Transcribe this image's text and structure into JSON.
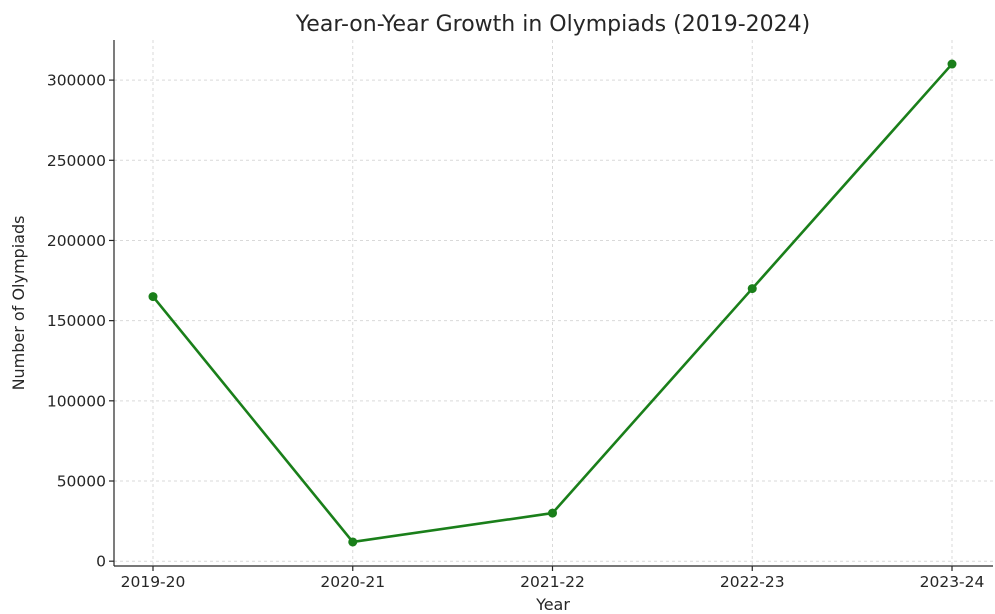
{
  "chart_data": {
    "type": "line",
    "title": "Year-on-Year Growth in Olympiads (2019-2024)",
    "xlabel": "Year",
    "ylabel": "Number of Olympiads",
    "categories": [
      "2019-20",
      "2020-21",
      "2021-22",
      "2022-23",
      "2023-24"
    ],
    "series": [
      {
        "values": [
          165000,
          12000,
          30000,
          170000,
          310000
        ],
        "color": "#1a7f1a"
      }
    ],
    "yticks": [
      0,
      50000,
      100000,
      150000,
      200000,
      250000,
      300000
    ],
    "ylim": [
      -3000,
      325000
    ],
    "grid": true,
    "legend": "none"
  }
}
